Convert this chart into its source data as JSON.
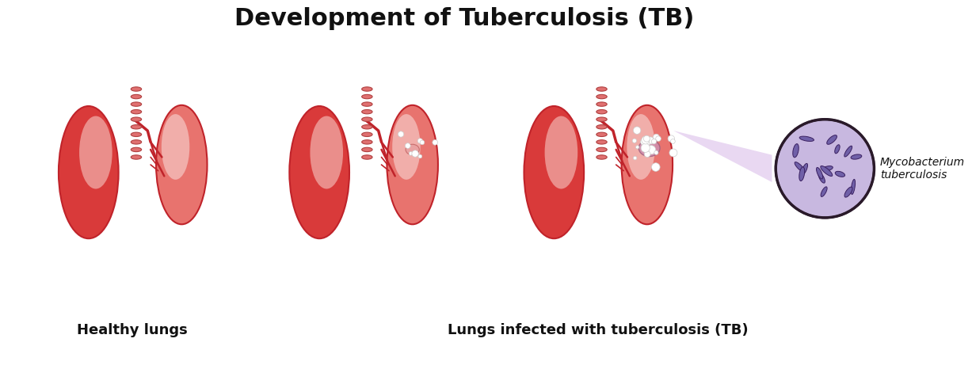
{
  "title": "Development of Tuberculosis (TB)",
  "label_healthy": "Healthy lungs",
  "label_infected": "Lungs infected with tuberculosis (TB)",
  "label_bacteria": "Mycobacterium\ntuberculosis",
  "bg_color": "#ffffff",
  "title_fontsize": 22,
  "label_fontsize": 13,
  "lung_red_dark": "#c0232a",
  "lung_red_mid": "#d93a3a",
  "lung_red_light": "#e8736e",
  "lung_pink_light": "#f2b3ae",
  "lung_highlight": "#f5c8c5",
  "trachea_color": "#e07070",
  "trachea_ring": "#e89090",
  "bacteria_circle_bg": "#c8b8e0",
  "bacteria_circle_border": "#2a1a2a",
  "bacteria_color": "#7060a8",
  "white_spot": "#ffffff",
  "infection_zone": "#f8f0f0"
}
